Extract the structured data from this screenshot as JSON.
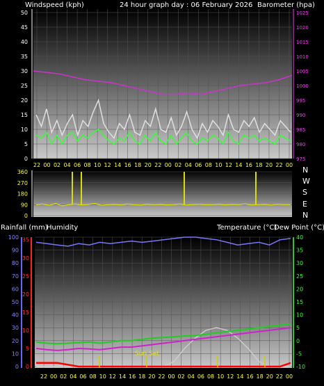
{
  "header": {
    "left": "Windspeed (kph)",
    "center": "24 hour graph day : 06 February 2026",
    "right": "Barometer (hpa)"
  },
  "mid_header": {
    "left1": "Rainfall (mm)",
    "left2": "Humidity",
    "right1": "Temperature (°C)",
    "right2": "Dew Point (°C)"
  },
  "compass": [
    "N",
    "W",
    "S",
    "E",
    "N"
  ],
  "annotation": "Sun Set",
  "colors": {
    "wind_gust": "#e0e0e0",
    "wind_avg": "#33ff33",
    "barometer": "#cc33cc",
    "direction": "#dddd00",
    "rain": "#ff0000",
    "humidity": "#7777ff",
    "temperature": "#22cc22",
    "dewpoint": "#cc22cc",
    "solar": "#cccccc",
    "sun_marker": "#cccc00"
  },
  "chart_data": [
    {
      "type": "line",
      "name": "wind-barometer",
      "x_ticks": [
        "22",
        "00",
        "02",
        "04",
        "06",
        "08",
        "10",
        "12",
        "14",
        "16",
        "18",
        "20",
        "22",
        "00",
        "02",
        "04",
        "06",
        "08",
        "10",
        "12",
        "14",
        "16",
        "18",
        "20",
        "22",
        "00"
      ],
      "left_axis": {
        "label": "Windspeed (kph)",
        "ticks": [
          "0",
          "5",
          "10",
          "15",
          "20",
          "25",
          "30",
          "35",
          "40",
          "45",
          "50"
        ],
        "ylim": [
          0,
          50
        ]
      },
      "right_axis": {
        "label": "Barometer (hpa)",
        "ticks": [
          "975",
          "980",
          "985",
          "990",
          "995",
          "1000",
          "1005",
          "1010",
          "1015",
          "1020",
          "1025"
        ],
        "ylim": [
          975,
          1025
        ]
      },
      "series": [
        {
          "axis": "left",
          "values": [
            15,
            11,
            17,
            9,
            13,
            8,
            12,
            15,
            8,
            13,
            11,
            16,
            20,
            12,
            9,
            7,
            12,
            10,
            15,
            9,
            8,
            13,
            11,
            17,
            10,
            9,
            14,
            8,
            11,
            16,
            10,
            7,
            12,
            9,
            13,
            11,
            8,
            15,
            10,
            9,
            13,
            11,
            14,
            9,
            12,
            10,
            8,
            13,
            11,
            9
          ]
        },
        {
          "axis": "left",
          "values": [
            8,
            7,
            9,
            5,
            8,
            5,
            8,
            9,
            6,
            8,
            7,
            9,
            10,
            8,
            6,
            5,
            7,
            6,
            9,
            6,
            5,
            8,
            6,
            9,
            6,
            5,
            8,
            5,
            7,
            9,
            6,
            5,
            7,
            6,
            8,
            7,
            5,
            9,
            6,
            5,
            8,
            7,
            8,
            6,
            7,
            6,
            5,
            8,
            7,
            6
          ]
        },
        {
          "axis": "right",
          "values": [
            1005,
            1004.5,
            1004,
            1003,
            1002,
            1001.5,
            1001,
            1000,
            999,
            998,
            997,
            997,
            997.5,
            997,
            998,
            999,
            1000,
            1000.5,
            1001,
            1002,
            1003.5
          ]
        }
      ]
    },
    {
      "type": "line",
      "name": "wind-direction",
      "left_axis": {
        "ticks": [
          "0",
          "90",
          "180",
          "270",
          "360"
        ],
        "ylim": [
          0,
          360
        ]
      },
      "right_axis": {
        "ticks": [
          "N",
          "W",
          "S",
          "E",
          "N"
        ]
      },
      "series": [
        {
          "values": [
            90,
            95,
            85,
            100,
            80,
            90,
            95,
            88,
            92,
            100,
            85,
            90,
            92,
            88,
            95,
            90,
            86,
            94,
            90,
            92,
            88,
            90,
            95,
            87,
            91,
            93,
            89,
            90,
            94,
            88,
            92,
            90,
            96,
            88,
            90,
            92,
            87,
            93,
            90,
            91
          ]
        }
      ]
    },
    {
      "type": "line",
      "name": "temp-humidity-rain",
      "x_ticks": [
        "22",
        "00",
        "02",
        "04",
        "06",
        "08",
        "10",
        "12",
        "14",
        "16",
        "18",
        "20",
        "22",
        "00",
        "02",
        "04",
        "06",
        "08",
        "10",
        "12",
        "14",
        "16",
        "18",
        "20",
        "22",
        "00"
      ],
      "left_axis_rain": {
        "label": "Rainfall (mm)",
        "ticks": [
          "0",
          "5",
          "10",
          "15",
          "20",
          "25",
          "30",
          "35"
        ],
        "ylim": [
          0,
          35
        ]
      },
      "left_axis_humidity": {
        "label": "Humidity",
        "ticks": [
          "0",
          "10",
          "20",
          "30",
          "40",
          "50",
          "60",
          "70",
          "80",
          "90",
          "100"
        ],
        "ylim": [
          0,
          100
        ]
      },
      "right_axis": {
        "label": "Temperature (°C) Dew Point (°C)",
        "ticks": [
          "-10",
          "-5",
          "0",
          "5",
          "10",
          "15",
          "20",
          "25",
          "30",
          "35",
          "40"
        ],
        "ylim": [
          -10,
          40
        ]
      },
      "series": [
        {
          "axis": "humidity",
          "values": [
            96,
            95,
            94,
            93,
            95,
            94,
            96,
            95,
            96,
            97,
            96,
            97,
            98,
            99,
            100,
            100,
            99,
            98,
            96,
            94,
            95,
            96,
            94,
            98,
            99
          ]
        },
        {
          "axis": "temp",
          "values": [
            -0.5,
            -1,
            -1.2,
            -1,
            -0.8,
            -0.5,
            -1,
            -0.5,
            0,
            0,
            0.5,
            1,
            1.2,
            1.5,
            1.8,
            2,
            2.5,
            3,
            3.5,
            4,
            4.5,
            5,
            5.5,
            6,
            6.5
          ]
        },
        {
          "axis": "temp",
          "values": [
            -3,
            -3.5,
            -3.8,
            -3.5,
            -3,
            -3.2,
            -3.5,
            -3,
            -2.5,
            -2.5,
            -2,
            -1.5,
            -1,
            -0.5,
            0,
            0.5,
            1,
            1.5,
            2,
            2.5,
            3,
            3.5,
            4,
            4.5,
            5
          ]
        },
        {
          "axis": "rain",
          "values": [
            1,
            1,
            1,
            0.5,
            0,
            0,
            0,
            0,
            0,
            0,
            0,
            0,
            0,
            0,
            0,
            0,
            0,
            0,
            0,
            0,
            0,
            0,
            0,
            0,
            1
          ]
        },
        {
          "axis": "temp",
          "name": "solar",
          "values": [
            -10,
            -10,
            -10,
            -10,
            -10,
            -10,
            -10,
            -10,
            -10,
            -10,
            -10,
            -10,
            -10,
            -8,
            -3,
            1,
            4,
            5,
            4,
            1,
            -3,
            -8,
            -10,
            -10,
            -10
          ]
        }
      ]
    }
  ]
}
